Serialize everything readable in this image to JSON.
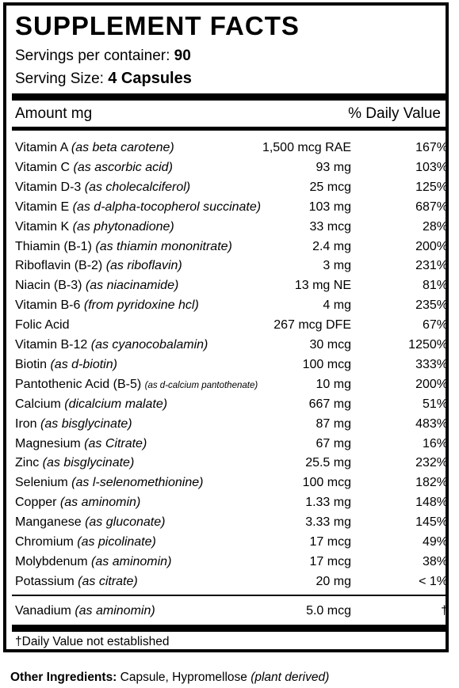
{
  "title": "SUPPLEMENT FACTS",
  "servings": {
    "label": "Servings per container: ",
    "value": "90"
  },
  "serving_size": {
    "label": "Serving Size: ",
    "value": "4 Capsules"
  },
  "columns": {
    "amount": "Amount mg",
    "daily_value": "% Daily Value"
  },
  "nutrients": [
    {
      "name": "Vitamin A ",
      "form": "(as beta carotene)",
      "amount": "1,500 mcg RAE",
      "dv": "167%"
    },
    {
      "name": "Vitamin C ",
      "form": "(as ascorbic acid)",
      "amount": "93 mg",
      "dv": "103%"
    },
    {
      "name": "Vitamin D-3 ",
      "form": "(as cholecalciferol)",
      "amount": "25 mcg",
      "dv": "125%"
    },
    {
      "name": "Vitamin E ",
      "form": "(as d-alpha-tocopherol succinate)",
      "amount": "103 mg",
      "dv": "687%"
    },
    {
      "name": "Vitamin K ",
      "form": "(as phytonadione)",
      "amount": "33 mcg",
      "dv": "28%"
    },
    {
      "name": "Thiamin (B-1) ",
      "form": "(as thiamin mononitrate)",
      "amount": "2.4 mg",
      "dv": "200%"
    },
    {
      "name": "Riboflavin (B-2) ",
      "form": "(as riboflavin)",
      "amount": "3 mg",
      "dv": "231%"
    },
    {
      "name": "Niacin (B-3) ",
      "form": "(as niacinamide)",
      "amount": "13 mg NE",
      "dv": "81%"
    },
    {
      "name": "Vitamin B-6 ",
      "form": "(from pyridoxine hcl)",
      "amount": "4 mg",
      "dv": "235%"
    },
    {
      "name": "Folic Acid",
      "form": "",
      "amount": "267 mcg DFE",
      "dv": "67%"
    },
    {
      "name": "Vitamin B-12 ",
      "form": "(as cyanocobalamin)",
      "amount": "30 mcg",
      "dv": "1250%"
    },
    {
      "name": "Biotin ",
      "form": "(as d-biotin)",
      "amount": "100 mcg",
      "dv": "333%"
    },
    {
      "name": "Pantothenic Acid (B-5) ",
      "form": "(as d-calcium pantothenate)",
      "amount": "10 mg",
      "dv": "200%",
      "small_form": true
    },
    {
      "name": "Calcium ",
      "form": "(dicalcium malate)",
      "amount": "667 mg",
      "dv": "51%"
    },
    {
      "name": "Iron ",
      "form": "(as bisglycinate)",
      "amount": "87 mg",
      "dv": "483%"
    },
    {
      "name": "Magnesium ",
      "form": "(as Citrate)",
      "amount": "67 mg",
      "dv": "16%"
    },
    {
      "name": "Zinc ",
      "form": "(as bisglycinate)",
      "amount": "25.5 mg",
      "dv": "232%"
    },
    {
      "name": "Selenium ",
      "form": "(as l-selenomethionine)",
      "amount": "100 mcg",
      "dv": "182%"
    },
    {
      "name": "Copper ",
      "form": "(as aminomin)",
      "amount": "1.33 mg",
      "dv": "148%"
    },
    {
      "name": "Manganese ",
      "form": "(as gluconate)",
      "amount": "3.33 mg",
      "dv": "145%"
    },
    {
      "name": "Chromium ",
      "form": "(as picolinate)",
      "amount": "17 mcg",
      "dv": "49%"
    },
    {
      "name": "Molybdenum ",
      "form": "(as aminomin)",
      "amount": "17 mcg",
      "dv": "38%"
    },
    {
      "name": "Potassium ",
      "form": "(as citrate)",
      "amount": "20 mg",
      "dv": "< 1%"
    }
  ],
  "extra_nutrient": {
    "name": "Vanadium ",
    "form": "(as aminomin)",
    "amount": "5.0 mcg",
    "dv": "†"
  },
  "footnote": "†Daily Value not established",
  "other_ingredients": {
    "label": "Other Ingredients: ",
    "text": "Capsule, Hypromellose ",
    "note": "(plant derived)"
  }
}
